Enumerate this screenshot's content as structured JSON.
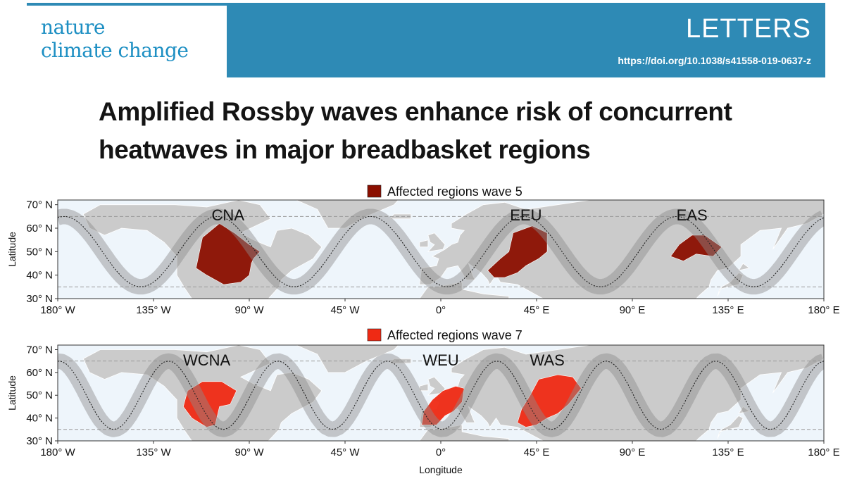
{
  "journal": {
    "name_line1": "nature",
    "name_line2": "climate change",
    "section": "LETTERS",
    "doi": "https://doi.org/10.1038/s41558-019-0637-z",
    "brand_color": "#2e8ab5"
  },
  "title_line1": "Amplified Rossby waves enhance risk of concurrent",
  "title_line2": "heatwaves in major breadbasket regions",
  "chart_data": [
    {
      "type": "map",
      "legend": "Affected regions wave 5",
      "legend_color": "#8b0f00",
      "wave_number": 5,
      "wave_phase_lon": 75,
      "regions": [
        {
          "label": "CNA",
          "lon": -100,
          "lat": 47
        },
        {
          "label": "EEU",
          "lon": 40,
          "lat": 50
        },
        {
          "label": "EAS",
          "lon": 118,
          "lat": 52
        }
      ],
      "ylabel": "Latitude",
      "ylim": [
        30,
        72
      ],
      "xlim": [
        -180,
        180
      ],
      "y_ticks": [
        "30° N",
        "40° N",
        "50° N",
        "60° N",
        "70° N"
      ],
      "x_ticks": [
        "180° W",
        "135° W",
        "90° W",
        "45° W",
        "0°",
        "45° E",
        "90° E",
        "135° E",
        "180° E"
      ]
    },
    {
      "type": "map",
      "legend": "Affected regions wave 7",
      "legend_color": "#ef2a14",
      "wave_number": 7,
      "wave_phase_lon": 52,
      "regions": [
        {
          "label": "WCNA",
          "lon": -110,
          "lat": 45
        },
        {
          "label": "WEU",
          "lon": 0,
          "lat": 45
        },
        {
          "label": "WAS",
          "lon": 50,
          "lat": 47
        }
      ],
      "xlabel": "Longitude",
      "ylabel": "Latitude",
      "ylim": [
        30,
        72
      ],
      "xlim": [
        -180,
        180
      ],
      "y_ticks": [
        "30° N",
        "40° N",
        "50° N",
        "60° N",
        "70° N"
      ],
      "x_ticks": [
        "180° W",
        "135° W",
        "90° W",
        "45° W",
        "0°",
        "45° E",
        "90° E",
        "135° E",
        "180° E"
      ]
    }
  ]
}
